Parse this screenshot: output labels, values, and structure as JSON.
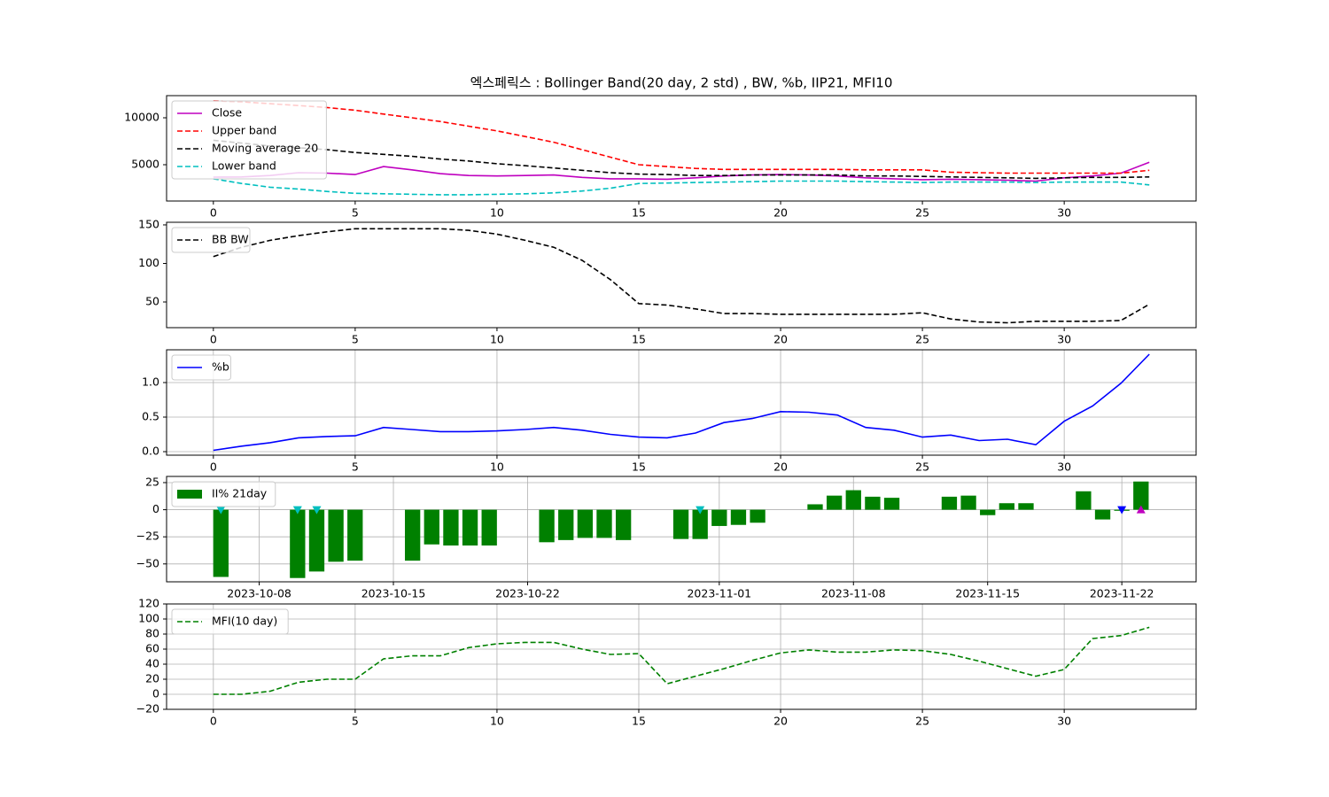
{
  "chart_data": [
    {
      "type": "line",
      "title": "엑스페릭스 : Bollinger Band(20 day, 2 std) , BW, %b, IIP21, MFI10",
      "x": [
        0,
        1,
        2,
        3,
        4,
        5,
        6,
        7,
        8,
        9,
        10,
        11,
        12,
        13,
        14,
        15,
        16,
        17,
        18,
        19,
        20,
        21,
        22,
        23,
        24,
        25,
        26,
        27,
        28,
        29,
        30,
        31,
        32,
        33
      ],
      "series": [
        {
          "name": "Close",
          "color": "#bf00bf",
          "dash": false,
          "values": [
            3680,
            3700,
            3850,
            4150,
            4100,
            3950,
            4800,
            4450,
            4050,
            3850,
            3800,
            3850,
            3900,
            3650,
            3500,
            3500,
            3450,
            3600,
            3800,
            3900,
            3950,
            3900,
            3800,
            3600,
            3500,
            3400,
            3450,
            3400,
            3350,
            3250,
            3600,
            3800,
            4100,
            5250
          ]
        },
        {
          "name": "Upper band",
          "color": "#ff0000",
          "dash": true,
          "values": [
            11800,
            11700,
            11500,
            11300,
            11100,
            10800,
            10400,
            10000,
            9600,
            9100,
            8600,
            8000,
            7400,
            6600,
            5800,
            5000,
            4800,
            4600,
            4500,
            4500,
            4500,
            4500,
            4500,
            4450,
            4450,
            4450,
            4200,
            4150,
            4100,
            4100,
            4100,
            4100,
            4100,
            4400
          ]
        },
        {
          "name": "Moving average 20",
          "color": "#000000",
          "dash": true,
          "values": [
            7600,
            7300,
            7000,
            6800,
            6600,
            6300,
            6100,
            5900,
            5600,
            5400,
            5100,
            4900,
            4650,
            4400,
            4150,
            4000,
            3950,
            3850,
            3850,
            3900,
            3900,
            3900,
            3900,
            3800,
            3800,
            3750,
            3700,
            3650,
            3600,
            3550,
            3600,
            3650,
            3650,
            3700
          ]
        },
        {
          "name": "Lower band",
          "color": "#00bfbf",
          "dash": true,
          "values": [
            3500,
            3000,
            2600,
            2400,
            2150,
            1950,
            1900,
            1850,
            1800,
            1800,
            1850,
            1900,
            2000,
            2200,
            2500,
            3000,
            3050,
            3100,
            3150,
            3200,
            3250,
            3250,
            3250,
            3200,
            3150,
            3100,
            3150,
            3150,
            3150,
            3100,
            3150,
            3150,
            3150,
            2850
          ]
        }
      ],
      "xlim": [
        -1.65,
        34.65
      ],
      "xticks": [
        0,
        5,
        10,
        15,
        20,
        25,
        30
      ],
      "ylim": [
        1130,
        12360
      ],
      "yticks": [
        5000,
        10000
      ],
      "grid": false,
      "legend": "upper left"
    },
    {
      "type": "line",
      "x": [
        0,
        1,
        2,
        3,
        4,
        5,
        6,
        7,
        8,
        9,
        10,
        11,
        12,
        13,
        14,
        15,
        16,
        17,
        18,
        19,
        20,
        21,
        22,
        23,
        24,
        25,
        26,
        27,
        28,
        29,
        30,
        31,
        32,
        33
      ],
      "series": [
        {
          "name": "BB BW",
          "color": "#000000",
          "dash": true,
          "values": [
            109,
            121,
            130,
            136,
            141,
            145,
            145,
            145,
            145,
            143,
            138,
            130,
            121,
            104,
            79,
            48,
            46,
            41,
            35,
            35,
            34,
            34,
            34,
            34,
            34,
            36,
            28,
            24,
            23,
            25,
            25,
            25,
            26,
            47
          ]
        }
      ],
      "xlim": [
        -1.65,
        34.65
      ],
      "xticks": [
        0,
        5,
        10,
        15,
        20,
        25,
        30
      ],
      "ylim": [
        16.7,
        153.4
      ],
      "yticks": [
        50,
        100,
        150
      ],
      "grid": false,
      "legend": "upper left"
    },
    {
      "type": "line",
      "x": [
        0,
        1,
        2,
        3,
        4,
        5,
        6,
        7,
        8,
        9,
        10,
        11,
        12,
        13,
        14,
        15,
        16,
        17,
        18,
        19,
        20,
        21,
        22,
        23,
        24,
        25,
        26,
        27,
        28,
        29,
        30,
        31,
        32,
        33
      ],
      "series": [
        {
          "name": "%b",
          "color": "#0000ff",
          "dash": false,
          "values": [
            0.02,
            0.08,
            0.13,
            0.2,
            0.22,
            0.23,
            0.35,
            0.32,
            0.29,
            0.29,
            0.3,
            0.32,
            0.35,
            0.31,
            0.25,
            0.21,
            0.2,
            0.27,
            0.42,
            0.48,
            0.58,
            0.57,
            0.53,
            0.35,
            0.31,
            0.21,
            0.24,
            0.16,
            0.18,
            0.1,
            0.44,
            0.66,
            0.99,
            1.41
          ]
        }
      ],
      "xlim": [
        -1.65,
        34.65
      ],
      "xticks": [
        0,
        5,
        10,
        15,
        20,
        25,
        30
      ],
      "ylim": [
        -0.051,
        1.474
      ],
      "yticks": [
        {
          "value": 0,
          "label": "0.0"
        },
        0.5,
        {
          "value": 1,
          "label": "1.0"
        }
      ],
      "grid": true,
      "legend": "upper left"
    },
    {
      "type": "bar",
      "x": [
        "2023-10-06",
        "2023-10-10",
        "2023-10-11",
        "2023-10-12",
        "2023-10-13",
        "2023-10-16",
        "2023-10-17",
        "2023-10-18",
        "2023-10-19",
        "2023-10-20",
        "2023-10-23",
        "2023-10-24",
        "2023-10-25",
        "2023-10-26",
        "2023-10-27",
        "2023-10-30",
        "2023-10-31",
        "2023-11-01",
        "2023-11-02",
        "2023-11-03",
        "2023-11-06",
        "2023-11-07",
        "2023-11-08",
        "2023-11-09",
        "2023-11-10",
        "2023-11-13",
        "2023-11-14",
        "2023-11-15",
        "2023-11-16",
        "2023-11-17",
        "2023-11-20",
        "2023-11-21",
        "2023-11-22",
        "2023-11-23"
      ],
      "series": [
        {
          "name": "II% 21day",
          "color": "#008000",
          "values": [
            -62,
            -63,
            -57,
            -48,
            -47,
            -47,
            -32,
            -33,
            -33,
            -33,
            -30,
            -28,
            -26,
            -26,
            -28,
            -27,
            -27,
            -15,
            -14,
            -12,
            5,
            13,
            18,
            12,
            11,
            12,
            13,
            -5,
            6,
            6,
            17,
            -9,
            -1,
            26
          ]
        }
      ],
      "markers": [
        {
          "color": "#00bfbf",
          "shape": "down",
          "x": [
            "2023-10-06",
            "2023-10-10",
            "2023-10-11",
            "2023-10-31"
          ],
          "values": [
            0,
            0,
            0,
            0
          ]
        },
        {
          "color": "#0000ff",
          "shape": "down",
          "x": [
            "2023-11-22"
          ],
          "values": [
            0
          ]
        },
        {
          "color": "#bf00bf",
          "shape": "up",
          "x": [
            "2023-11-23"
          ],
          "values": [
            0
          ]
        }
      ],
      "xlim": [
        "2023-10-03T04:00",
        "2023-11-25T21:00"
      ],
      "xticks": [
        "2023-10-08",
        "2023-10-15",
        "2023-10-22",
        "2023-11-01",
        "2023-11-08",
        "2023-11-15",
        "2023-11-22"
      ],
      "ylim": [
        -66.5,
        30.7
      ],
      "yticks": [
        {
          "value": -50,
          "label": "−50"
        },
        {
          "value": -25,
          "label": "−25"
        },
        0,
        25
      ],
      "grid": true,
      "legend": "upper left"
    },
    {
      "type": "line",
      "x": [
        0,
        1,
        2,
        3,
        4,
        5,
        6,
        7,
        8,
        9,
        10,
        11,
        12,
        13,
        14,
        15,
        16,
        17,
        18,
        19,
        20,
        21,
        22,
        23,
        24,
        25,
        26,
        27,
        28,
        29,
        30,
        31,
        32,
        33
      ],
      "series": [
        {
          "name": "MFI(10 day)",
          "color": "#008000",
          "dash": true,
          "values": [
            0,
            0,
            4,
            16,
            20,
            20,
            47,
            51,
            51,
            62,
            67,
            69,
            69,
            60,
            53,
            54,
            14,
            24,
            34,
            45,
            55,
            59,
            56,
            56,
            59,
            58,
            53,
            44,
            34,
            24,
            33,
            74,
            78,
            89
          ]
        }
      ],
      "xlim": [
        -1.65,
        34.65
      ],
      "xticks": [
        0,
        5,
        10,
        15,
        20,
        25,
        30
      ],
      "ylim": [
        -20,
        120
      ],
      "yticks": [
        {
          "value": -20,
          "label": "−20"
        },
        0,
        20,
        40,
        60,
        80,
        100,
        120
      ],
      "grid": true,
      "legend": "upper left"
    }
  ]
}
